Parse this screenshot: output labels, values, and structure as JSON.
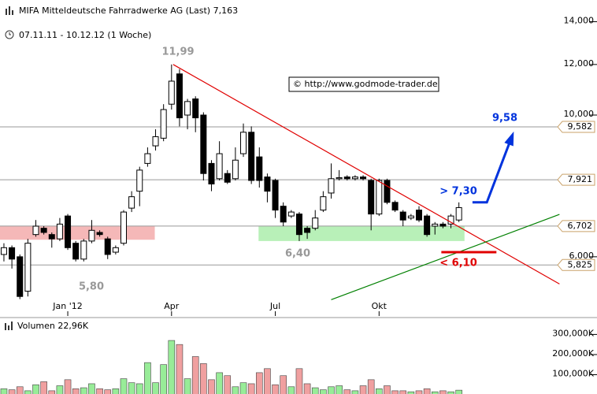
{
  "chart_data": {
    "type": "candlestick",
    "title": "MIFA Mitteldeutsche Fahrradwerke AG (Last) 7,163",
    "subtitle": "07.11.11 - 10.12.12 (1 Woche)",
    "source": "© http://www.godmode-trader.de",
    "log_scale": true,
    "xlim": [
      -0.49,
      74.3
    ],
    "xticks": [
      {
        "value": 8,
        "label": "Jan '12"
      },
      {
        "value": 21,
        "label": "Apr"
      },
      {
        "value": 34,
        "label": "Jul"
      },
      {
        "value": 47,
        "label": "Okt"
      }
    ],
    "ylim": [
      4.93,
      15.14
    ],
    "yticks": [
      {
        "value": 14,
        "label": "14,000"
      },
      {
        "value": 12,
        "label": "12,000"
      },
      {
        "value": 10,
        "label": "10,000"
      },
      {
        "value": 6,
        "label": "6,000"
      }
    ],
    "up_color": "#ffffff",
    "down_color": "#000000",
    "open": [
      6.05,
      6.2,
      6.0,
      5.3,
      6.5,
      6.65,
      6.5,
      6.4,
      6.95,
      6.3,
      5.95,
      6.35,
      6.55,
      6.4,
      6.1,
      6.3,
      7.15,
      7.6,
      8.4,
      8.95,
      9.2,
      10.4,
      11.6,
      10.0,
      10.6,
      10.0,
      8.4,
      7.95,
      8.1,
      7.95,
      8.7,
      9.4,
      8.6,
      8.0,
      7.9,
      7.2,
      6.95,
      7.0,
      6.65,
      6.65,
      7.1,
      7.55,
      7.95,
      8.0,
      7.95,
      8.0,
      7.9,
      7.0,
      7.9,
      7.3,
      7.05,
      6.9,
      7.1,
      6.95,
      6.7,
      6.75,
      6.75,
      6.85
    ],
    "high": [
      6.3,
      6.25,
      6.05,
      6.4,
      6.85,
      6.7,
      6.55,
      6.9,
      7.0,
      6.35,
      6.4,
      6.85,
      6.6,
      6.45,
      6.25,
      7.1,
      7.6,
      8.3,
      8.9,
      9.5,
      10.4,
      12.0,
      11.8,
      10.6,
      10.7,
      10.1,
      8.5,
      9.1,
      8.2,
      8.9,
      9.7,
      9.6,
      8.9,
      8.1,
      7.95,
      7.3,
      7.1,
      7.05,
      6.7,
      7.1,
      7.6,
      8.4,
      8.2,
      8.05,
      8.05,
      8.05,
      7.95,
      7.95,
      7.95,
      7.35,
      7.1,
      7.0,
      7.2,
      7.0,
      6.8,
      6.8,
      7.0,
      7.3
    ],
    "low": [
      5.9,
      5.75,
      5.15,
      5.2,
      6.45,
      6.5,
      6.2,
      6.35,
      6.15,
      5.9,
      5.9,
      6.3,
      6.45,
      5.95,
      6.05,
      6.25,
      7.05,
      7.2,
      8.3,
      8.8,
      9.1,
      10.2,
      9.6,
      9.5,
      9.4,
      7.9,
      7.6,
      7.9,
      7.8,
      7.9,
      8.6,
      7.8,
      7.7,
      7.3,
      6.9,
      6.7,
      6.9,
      6.35,
      6.4,
      6.6,
      7.05,
      7.4,
      7.9,
      7.9,
      7.9,
      7.9,
      6.6,
      6.95,
      7.25,
      7.05,
      6.7,
      6.85,
      6.8,
      6.45,
      6.5,
      6.65,
      6.65,
      6.8
    ],
    "close": [
      6.2,
      5.95,
      5.2,
      6.3,
      6.7,
      6.55,
      6.4,
      6.75,
      6.2,
      5.95,
      6.35,
      6.6,
      6.5,
      6.05,
      6.2,
      7.05,
      7.45,
      8.2,
      8.7,
      9.25,
      10.2,
      11.3,
      9.9,
      10.5,
      9.9,
      8.1,
      7.8,
      8.7,
      7.85,
      8.5,
      9.4,
      7.9,
      7.9,
      7.6,
      7.1,
      6.8,
      7.05,
      6.5,
      6.55,
      6.9,
      7.45,
      7.95,
      7.98,
      7.95,
      8.0,
      7.95,
      7.0,
      7.9,
      7.3,
      7.1,
      6.85,
      6.95,
      6.85,
      6.5,
      6.75,
      6.7,
      6.95,
      7.163
    ],
    "levels": [
      {
        "value": 9.582,
        "label": "9,582"
      },
      {
        "value": 7.921,
        "label": "7,921"
      },
      {
        "value": 6.702,
        "label": "6,702"
      },
      {
        "value": 5.825,
        "label": "5,825"
      }
    ],
    "zones": [
      {
        "color": "#f5b8b8",
        "x": [
          -0.49,
          18.9
        ],
        "y": [
          6.38,
          6.7
        ]
      },
      {
        "color": "#b8f0b8",
        "x": [
          31.9,
          57.7
        ],
        "y": [
          6.35,
          6.7
        ]
      }
    ],
    "trendlines": [
      {
        "color": "#e00000",
        "x": [
          21.2,
          69.6
        ],
        "y": [
          12.0,
          5.44
        ]
      },
      {
        "color": "#008000",
        "x": [
          41.0,
          69.6
        ],
        "y": [
          5.14,
          6.99
        ]
      }
    ],
    "annotations": [
      "11,99",
      "5,80",
      "6,40",
      "9,58",
      "> 7,30",
      "< 6,10"
    ],
    "signals": [
      {
        "color": "#0033dd",
        "x": [
          58.7,
          60.5,
          63.7
        ],
        "y": [
          7.3,
          7.3,
          9.3
        ]
      },
      {
        "color": "#e00000",
        "x": [
          54.8,
          61.7
        ],
        "y": [
          6.1,
          6.1
        ]
      }
    ],
    "volume": {
      "label": "Volumen 22,96K",
      "up_color": "#98ec98",
      "down_color": "#f0a0a0",
      "ylim": [
        0,
        376
      ],
      "yticks": [
        {
          "value": 300,
          "label": "300,000K"
        },
        {
          "value": 200,
          "label": "200,000K"
        },
        {
          "value": 100,
          "label": "100,000K"
        }
      ],
      "values": [
        30,
        25,
        40,
        20,
        50,
        65,
        20,
        45,
        75,
        30,
        35,
        55,
        30,
        25,
        30,
        80,
        60,
        55,
        160,
        60,
        150,
        270,
        250,
        80,
        190,
        155,
        75,
        110,
        95,
        40,
        60,
        55,
        110,
        130,
        50,
        95,
        40,
        130,
        55,
        35,
        25,
        40,
        45,
        25,
        20,
        45,
        75,
        30,
        45,
        20,
        20,
        15,
        20,
        30,
        15,
        20,
        15,
        22.96
      ]
    }
  }
}
